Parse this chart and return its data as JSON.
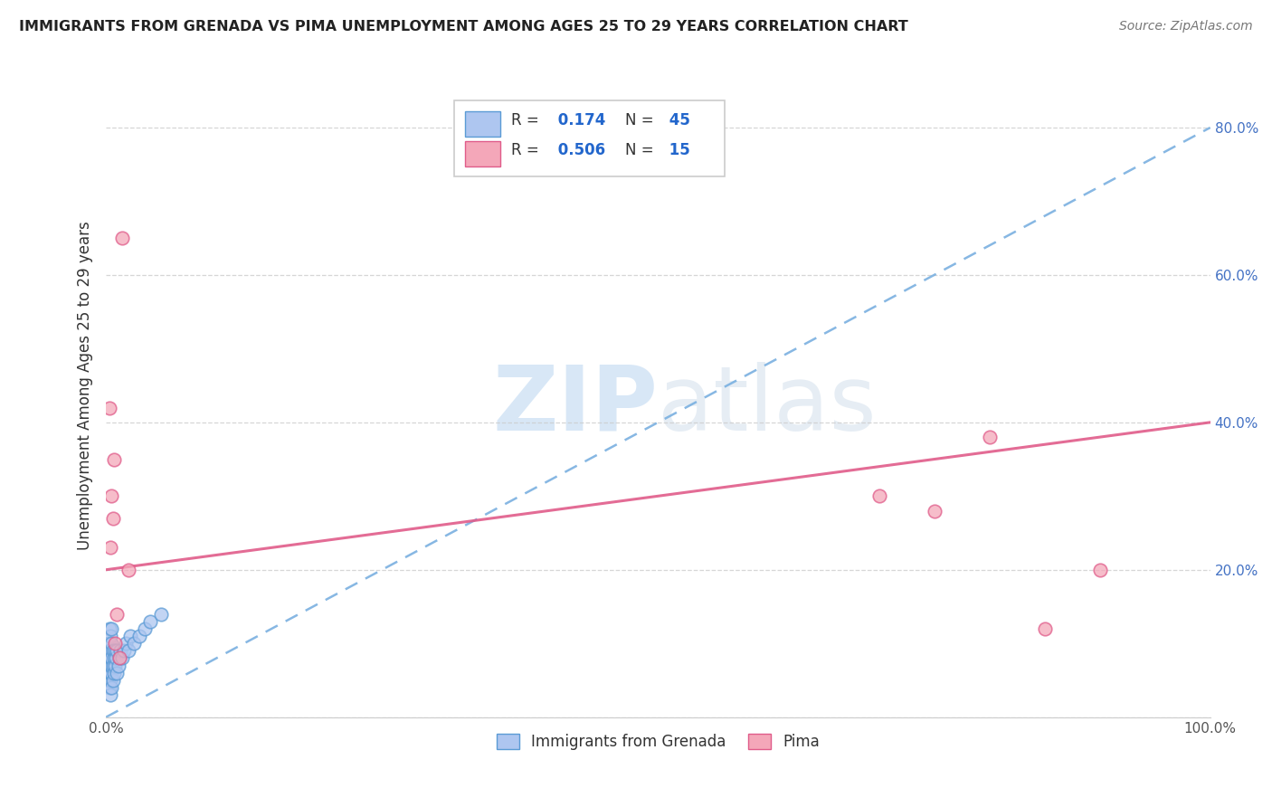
{
  "title": "IMMIGRANTS FROM GRENADA VS PIMA UNEMPLOYMENT AMONG AGES 25 TO 29 YEARS CORRELATION CHART",
  "source": "Source: ZipAtlas.com",
  "ylabel": "Unemployment Among Ages 25 to 29 years",
  "xlim": [
    0.0,
    1.0
  ],
  "ylim": [
    0.0,
    0.9
  ],
  "watermark_zip": "ZIP",
  "watermark_atlas": "atlas",
  "legend_blue_label": "Immigrants from Grenada",
  "legend_pink_label": "Pima",
  "R_blue": 0.174,
  "N_blue": 45,
  "R_pink": 0.506,
  "N_pink": 15,
  "blue_scatter_x": [
    0.002,
    0.002,
    0.002,
    0.003,
    0.003,
    0.003,
    0.003,
    0.003,
    0.003,
    0.004,
    0.004,
    0.004,
    0.004,
    0.004,
    0.004,
    0.004,
    0.005,
    0.005,
    0.005,
    0.005,
    0.005,
    0.005,
    0.006,
    0.006,
    0.006,
    0.007,
    0.007,
    0.008,
    0.008,
    0.009,
    0.01,
    0.01,
    0.011,
    0.012,
    0.013,
    0.015,
    0.016,
    0.018,
    0.02,
    0.022,
    0.025,
    0.03,
    0.035,
    0.04,
    0.05
  ],
  "blue_scatter_y": [
    0.05,
    0.08,
    0.1,
    0.04,
    0.06,
    0.07,
    0.09,
    0.1,
    0.12,
    0.03,
    0.05,
    0.06,
    0.07,
    0.08,
    0.09,
    0.11,
    0.04,
    0.06,
    0.07,
    0.08,
    0.1,
    0.12,
    0.05,
    0.07,
    0.09,
    0.06,
    0.08,
    0.07,
    0.09,
    0.08,
    0.06,
    0.09,
    0.07,
    0.08,
    0.09,
    0.08,
    0.09,
    0.1,
    0.09,
    0.11,
    0.1,
    0.11,
    0.12,
    0.13,
    0.14
  ],
  "pink_scatter_x": [
    0.003,
    0.004,
    0.005,
    0.006,
    0.007,
    0.008,
    0.01,
    0.012,
    0.015,
    0.02,
    0.7,
    0.75,
    0.8,
    0.85,
    0.9
  ],
  "pink_scatter_y": [
    0.42,
    0.23,
    0.3,
    0.27,
    0.35,
    0.1,
    0.14,
    0.08,
    0.65,
    0.2,
    0.3,
    0.28,
    0.38,
    0.12,
    0.2
  ],
  "blue_line_y0": 0.0,
  "blue_line_y1": 0.8,
  "pink_line_y0": 0.2,
  "pink_line_y1": 0.4,
  "blue_color": "#aec6f0",
  "pink_color": "#f4a7b9",
  "blue_edge_color": "#5b9bd5",
  "pink_edge_color": "#e05c8a",
  "blue_line_color": "#7ab0e0",
  "pink_line_color": "#e05c8a",
  "bg_color": "#ffffff",
  "grid_color": "#cccccc",
  "ytick_color": "#4472c4",
  "xtick_color": "#555555"
}
